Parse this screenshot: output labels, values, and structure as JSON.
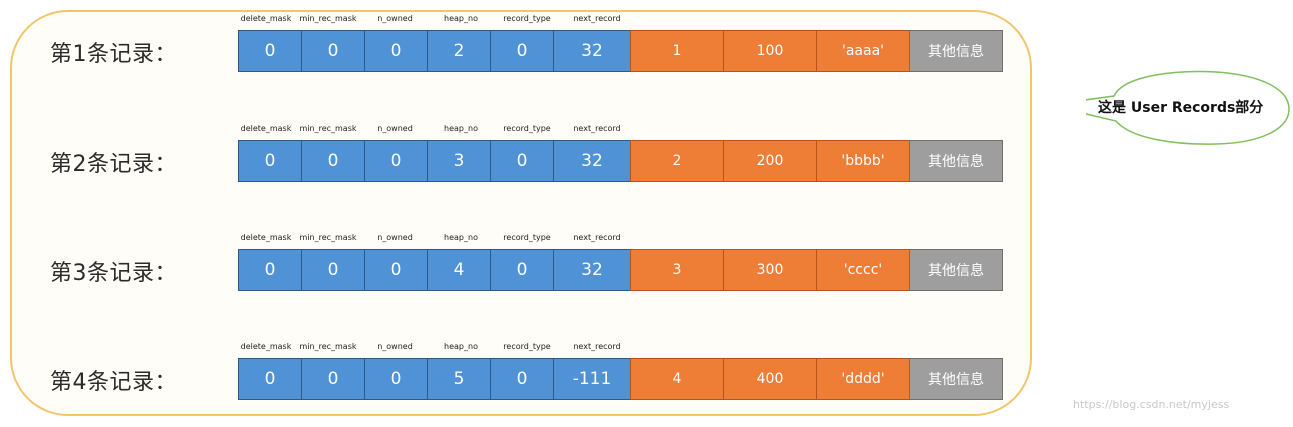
{
  "headers": [
    "delete_mask",
    "min_rec_mask",
    "n_owned",
    "heap_no",
    "record_type",
    "next_record"
  ],
  "records": [
    {
      "label": "第1条记录：",
      "header_fields": [
        "0",
        "0",
        "0",
        "2",
        "0",
        "32"
      ],
      "columns": [
        "1",
        "100",
        "'aaaa'"
      ],
      "other": "其他信息"
    },
    {
      "label": "第2条记录：",
      "header_fields": [
        "0",
        "0",
        "0",
        "3",
        "0",
        "32"
      ],
      "columns": [
        "2",
        "200",
        "'bbbb'"
      ],
      "other": "其他信息"
    },
    {
      "label": "第3条记录：",
      "header_fields": [
        "0",
        "0",
        "0",
        "4",
        "0",
        "32"
      ],
      "columns": [
        "3",
        "300",
        "'cccc'"
      ],
      "other": "其他信息"
    },
    {
      "label": "第4条记录：",
      "header_fields": [
        "0",
        "0",
        "0",
        "5",
        "0",
        "-111"
      ],
      "columns": [
        "4",
        "400",
        "'dddd'"
      ],
      "other": "其他信息"
    }
  ],
  "callout": {
    "text": "这是 User Records部分"
  },
  "watermark": "https://blog.csdn.net/myjess",
  "colors": {
    "header_cell": "#4f92d6",
    "column_cell": "#ee7d36",
    "other_cell": "#9e9e9e",
    "outer_border": "#f4c46a",
    "callout_border": "#7fbf5e"
  }
}
